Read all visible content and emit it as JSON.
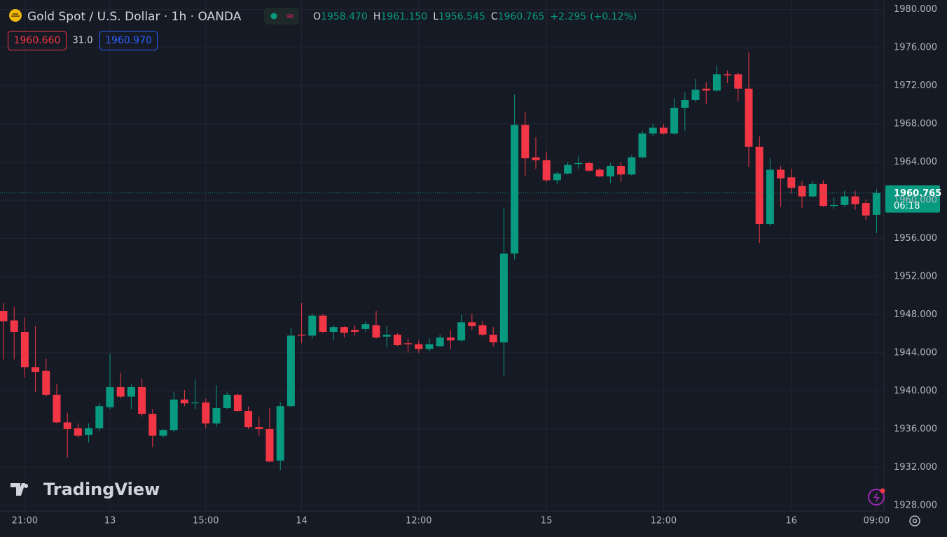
{
  "chart_data": {
    "type": "candlestick",
    "title": "Gold Spot / U.S. Dollar · 1h · OANDA",
    "ohlc_labels": [
      "O",
      "H",
      "L",
      "C"
    ],
    "ohlc_values": [
      {
        "value": 1958.47,
        "label": "1958.470"
      },
      {
        "value": 1961.15,
        "label": "1961.150"
      },
      {
        "value": 1956.545,
        "label": "1956.545"
      },
      {
        "value": 1960.765,
        "label": "1960.765"
      }
    ],
    "change": {
      "value": 2.295,
      "label": "+2.295"
    },
    "change_pct": {
      "value": 0.12,
      "label": "(+0.12%)"
    },
    "bid": {
      "value": 1960.66,
      "label": "1960.660"
    },
    "spread": {
      "value": 31,
      "label": "31.0"
    },
    "ask": {
      "value": 1960.97,
      "label": "1960.970"
    },
    "last_price": {
      "value": 1960.765,
      "label": "1960.765"
    },
    "countdown": "06:18",
    "brand": "TradingView",
    "up_color": "#089981",
    "down_color": "#f23645",
    "grid": true,
    "categories": [
      null,
      null,
      "21:00",
      null,
      null,
      null,
      null,
      null,
      null,
      null,
      "13",
      null,
      null,
      null,
      null,
      null,
      null,
      null,
      null,
      "15:00",
      null,
      null,
      null,
      null,
      null,
      null,
      null,
      null,
      "14",
      null,
      null,
      null,
      null,
      null,
      null,
      null,
      null,
      null,
      null,
      "12:00",
      null,
      null,
      null,
      null,
      null,
      null,
      null,
      null,
      null,
      null,
      null,
      "15",
      null,
      null,
      null,
      null,
      null,
      null,
      null,
      null,
      null,
      null,
      "12:00",
      null,
      null,
      null,
      null,
      null,
      null,
      null,
      null,
      null,
      null,
      null,
      "16",
      null,
      null,
      null,
      null,
      null,
      null,
      null,
      "09:00"
    ],
    "open": [
      1948.4,
      1947.4,
      1946.2,
      1942.5,
      1942.1,
      1939.6,
      1936.7,
      1936.1,
      1935.4,
      1936.1,
      1938.3,
      1940.4,
      1939.4,
      1940.4,
      1937.6,
      1935.3,
      1935.9,
      1939.1,
      1938.7,
      1938.8,
      1936.6,
      1938.2,
      1939.6,
      1937.9,
      1936.2,
      1936.0,
      1932.7,
      1938.4,
      1945.9,
      1945.8,
      1947.9,
      1946.2,
      1946.7,
      1946.4,
      1946.5,
      1946.9,
      1945.7,
      1945.9,
      1945.0,
      1944.9,
      1944.4,
      1944.7,
      1945.6,
      1945.3,
      1947.2,
      1946.9,
      1945.9,
      1945.1,
      1954.4,
      1967.9,
      1964.5,
      1964.2,
      1962.1,
      1962.8,
      1963.8,
      1963.9,
      1963.2,
      1962.5,
      1963.6,
      1962.7,
      1964.5,
      1967.0,
      1967.6,
      1967.0,
      1969.7,
      1970.5,
      1971.7,
      1971.5,
      1973.2,
      1973.2,
      1971.7,
      1965.6,
      1957.5,
      1963.2,
      1962.4,
      1961.5,
      1960.4,
      1961.7,
      1959.4,
      1959.5,
      1960.4,
      1959.7,
      1958.47
    ],
    "high": [
      1949.2,
      1948.8,
      1947.7,
      1946.8,
      1943.4,
      1940.7,
      1937.7,
      1936.6,
      1936.6,
      1938.7,
      1943.9,
      1941.9,
      1940.7,
      1941.3,
      1938.1,
      1936.0,
      1939.9,
      1940.1,
      1941.2,
      1939.2,
      1940.6,
      1939.9,
      1939.7,
      1938.4,
      1937.3,
      1938.2,
      1938.8,
      1946.6,
      1949.2,
      1948.1,
      1948.1,
      1946.9,
      1946.8,
      1946.9,
      1947.3,
      1948.4,
      1946.8,
      1946.1,
      1945.5,
      1945.3,
      1945.5,
      1945.9,
      1946.4,
      1948.0,
      1948.1,
      1947.3,
      1946.7,
      1959.2,
      1971.1,
      1969.3,
      1966.6,
      1965.1,
      1963.0,
      1964.0,
      1964.6,
      1964.0,
      1963.4,
      1963.9,
      1964.0,
      1964.7,
      1967.3,
      1968.0,
      1968.0,
      1970.7,
      1971.3,
      1972.7,
      1972.4,
      1974.1,
      1973.6,
      1973.4,
      1975.5,
      1966.7,
      1964.4,
      1963.6,
      1963.3,
      1962.0,
      1962.0,
      1962.1,
      1960.3,
      1961.0,
      1961.0,
      1960.1,
      1961.15
    ],
    "low": [
      1943.3,
      1943.3,
      1941.4,
      1939.9,
      1939.4,
      1936.6,
      1933.0,
      1935.1,
      1934.6,
      1935.8,
      1938.1,
      1939.2,
      1938.1,
      1937.3,
      1934.1,
      1935.1,
      1935.7,
      1938.4,
      1938.1,
      1936.1,
      1936.2,
      1938.1,
      1937.8,
      1936.0,
      1935.3,
      1932.5,
      1931.7,
      1938.3,
      1945.0,
      1945.5,
      1946.1,
      1945.3,
      1945.6,
      1945.8,
      1946.2,
      1945.5,
      1944.6,
      1944.7,
      1944.0,
      1944.0,
      1944.2,
      1944.6,
      1944.4,
      1945.2,
      1946.4,
      1945.7,
      1944.7,
      1941.6,
      1953.8,
      1962.5,
      1963.3,
      1961.9,
      1961.7,
      1962.7,
      1963.3,
      1963.0,
      1962.4,
      1961.8,
      1961.9,
      1962.6,
      1964.4,
      1966.7,
      1966.9,
      1966.9,
      1967.3,
      1970.3,
      1970.1,
      1971.4,
      1972.3,
      1970.4,
      1963.5,
      1955.5,
      1957.3,
      1959.3,
      1960.7,
      1959.2,
      1960.3,
      1959.3,
      1959.1,
      1959.3,
      1959.0,
      1957.9,
      1956.545
    ],
    "close": [
      1947.3,
      1946.2,
      1942.5,
      1942.0,
      1939.6,
      1936.7,
      1936.0,
      1935.3,
      1936.1,
      1938.4,
      1940.4,
      1939.4,
      1940.4,
      1937.6,
      1935.3,
      1935.9,
      1939.1,
      1938.7,
      1938.8,
      1936.6,
      1938.2,
      1939.6,
      1937.9,
      1936.2,
      1936.0,
      1932.6,
      1938.4,
      1945.8,
      1945.8,
      1947.9,
      1946.2,
      1946.7,
      1946.1,
      1946.2,
      1947.0,
      1945.6,
      1945.9,
      1944.8,
      1944.9,
      1944.4,
      1944.9,
      1945.6,
      1945.3,
      1947.2,
      1946.8,
      1945.9,
      1945.1,
      1954.4,
      1967.9,
      1964.4,
      1964.2,
      1962.1,
      1962.8,
      1963.7,
      1963.9,
      1963.1,
      1962.5,
      1963.6,
      1962.7,
      1964.5,
      1967.0,
      1967.6,
      1967.0,
      1969.7,
      1970.5,
      1971.6,
      1971.5,
      1973.2,
      1973.1,
      1971.7,
      1965.6,
      1957.5,
      1963.2,
      1962.3,
      1961.3,
      1960.4,
      1961.7,
      1959.4,
      1959.5,
      1960.4,
      1959.6,
      1958.4,
      1960.765
    ],
    "ylim": [
      1927.4,
      1981.0
    ],
    "yticks": [
      {
        "value": 1928,
        "label": "1928.000"
      },
      {
        "value": 1932,
        "label": "1932.000"
      },
      {
        "value": 1936,
        "label": "1936.000"
      },
      {
        "value": 1940,
        "label": "1940.000"
      },
      {
        "value": 1944,
        "label": "1944.000"
      },
      {
        "value": 1948,
        "label": "1948.000"
      },
      {
        "value": 1952,
        "label": "1952.000"
      },
      {
        "value": 1956,
        "label": "1956.000"
      },
      {
        "value": 1960,
        "label": "1960.000"
      },
      {
        "value": 1964,
        "label": "1964.000"
      },
      {
        "value": 1968,
        "label": "1968.000"
      },
      {
        "value": 1972,
        "label": "1972.000"
      },
      {
        "value": 1976,
        "label": "1976.000"
      },
      {
        "value": 1980,
        "label": "1980.000"
      }
    ]
  }
}
